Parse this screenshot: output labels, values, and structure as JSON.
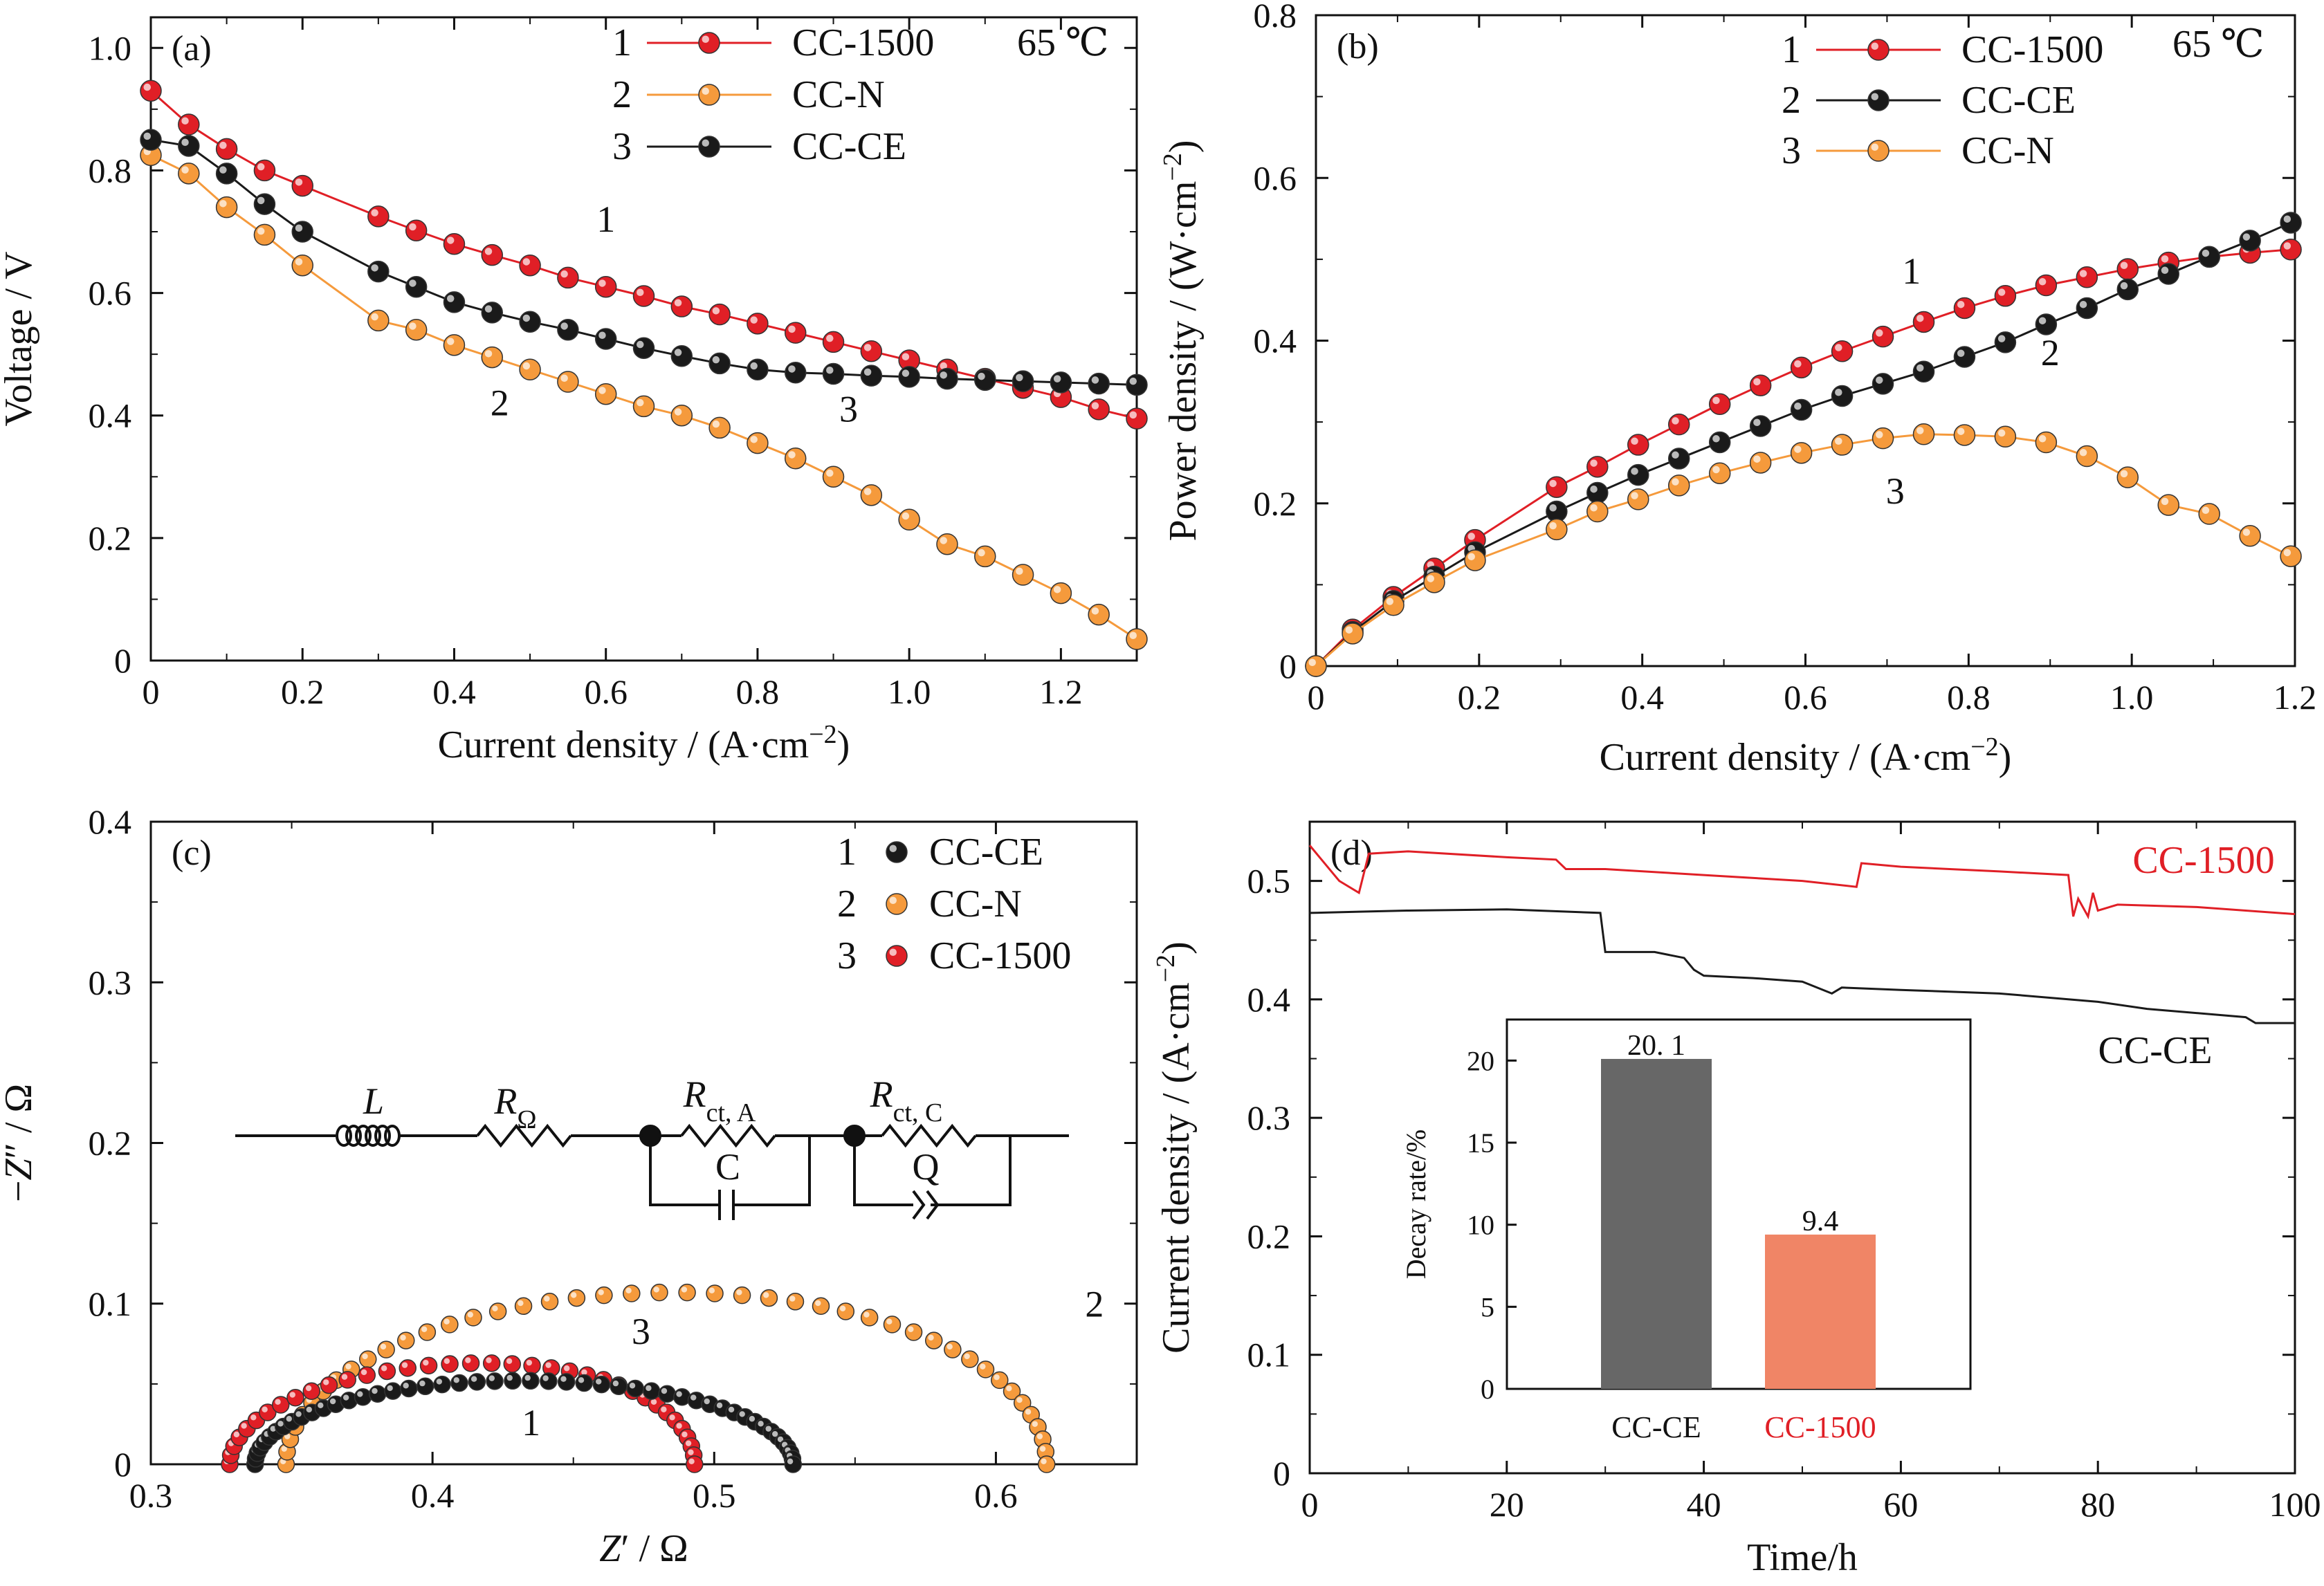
{
  "colors": {
    "red": "#e01f26",
    "orange": "#f59a3c",
    "black": "#1a1a1a",
    "bar_gray": "#676767",
    "bar_salmon": "#f08566",
    "inset_red_label": "#e01f26"
  },
  "chart_data": [
    {
      "panel": "(a)",
      "type": "line",
      "xlabel": "Current density / (A·cm⁻²)",
      "ylabel": "Voltage / V",
      "xlim": [
        0,
        1.3
      ],
      "ylim": [
        0,
        1.05
      ],
      "xticks": [
        0,
        0.2,
        0.4,
        0.6,
        0.8,
        1.0,
        1.2
      ],
      "yticks": [
        0,
        0.2,
        0.4,
        0.6,
        0.8,
        1.0
      ],
      "xtick_labels": [
        "0",
        "0.2",
        "0.4",
        "0.6",
        "0.8",
        "1.0",
        "1.2"
      ],
      "ytick_labels": [
        "0",
        "0.2",
        "0.4",
        "0.6",
        "0.8",
        "1.0"
      ],
      "temperature": "65 ℃",
      "legend": [
        {
          "num": "1",
          "name": "CC-1500",
          "color": "red"
        },
        {
          "num": "2",
          "name": "CC-N",
          "color": "orange"
        },
        {
          "num": "3",
          "name": "CC-CE",
          "color": "black"
        }
      ],
      "curve_labels": [
        {
          "text": "1",
          "x": 0.6,
          "y": 0.7
        },
        {
          "text": "2",
          "x": 0.46,
          "y": 0.4
        },
        {
          "text": "3",
          "x": 0.92,
          "y": 0.39
        }
      ],
      "series": [
        {
          "name": "CC-1500",
          "color": "red",
          "x": [
            0,
            0.05,
            0.1,
            0.15,
            0.2,
            0.3,
            0.35,
            0.4,
            0.45,
            0.5,
            0.55,
            0.6,
            0.65,
            0.7,
            0.75,
            0.8,
            0.85,
            0.9,
            0.95,
            1.0,
            1.05,
            1.1,
            1.15,
            1.2,
            1.25,
            1.3
          ],
          "y": [
            0.93,
            0.875,
            0.835,
            0.8,
            0.775,
            0.725,
            0.702,
            0.68,
            0.662,
            0.645,
            0.625,
            0.61,
            0.595,
            0.578,
            0.565,
            0.55,
            0.535,
            0.52,
            0.505,
            0.49,
            0.475,
            0.46,
            0.445,
            0.43,
            0.41,
            0.395
          ]
        },
        {
          "name": "CC-N",
          "color": "orange",
          "x": [
            0,
            0.05,
            0.1,
            0.15,
            0.2,
            0.3,
            0.35,
            0.4,
            0.45,
            0.5,
            0.55,
            0.6,
            0.65,
            0.7,
            0.75,
            0.8,
            0.85,
            0.9,
            0.95,
            1.0,
            1.05,
            1.1,
            1.15,
            1.2,
            1.25,
            1.3
          ],
          "y": [
            0.825,
            0.795,
            0.74,
            0.695,
            0.645,
            0.555,
            0.54,
            0.515,
            0.495,
            0.475,
            0.455,
            0.435,
            0.415,
            0.4,
            0.38,
            0.355,
            0.33,
            0.3,
            0.27,
            0.23,
            0.19,
            0.17,
            0.14,
            0.11,
            0.075,
            0.035
          ]
        },
        {
          "name": "CC-CE",
          "color": "black",
          "x": [
            0,
            0.05,
            0.1,
            0.15,
            0.2,
            0.3,
            0.35,
            0.4,
            0.45,
            0.5,
            0.55,
            0.6,
            0.65,
            0.7,
            0.75,
            0.8,
            0.85,
            0.9,
            0.95,
            1.0,
            1.05,
            1.1,
            1.15,
            1.2,
            1.25,
            1.3
          ],
          "y": [
            0.85,
            0.84,
            0.795,
            0.745,
            0.7,
            0.635,
            0.61,
            0.585,
            0.568,
            0.553,
            0.54,
            0.525,
            0.51,
            0.497,
            0.485,
            0.475,
            0.47,
            0.468,
            0.465,
            0.463,
            0.46,
            0.458,
            0.456,
            0.454,
            0.452,
            0.45
          ]
        }
      ]
    },
    {
      "panel": "(b)",
      "type": "line",
      "xlabel": "Current density / (A·cm⁻²)",
      "ylabel": "Power density / (W·cm⁻²)",
      "xlim": [
        0,
        1.2
      ],
      "ylim": [
        0,
        0.8
      ],
      "xticks": [
        0,
        0.2,
        0.4,
        0.6,
        0.8,
        1.0,
        1.2
      ],
      "yticks": [
        0,
        0.2,
        0.4,
        0.6,
        0.8
      ],
      "xtick_labels": [
        "0",
        "0.2",
        "0.4",
        "0.6",
        "0.8",
        "1.0",
        "1.2"
      ],
      "ytick_labels": [
        "0",
        "0.2",
        "0.4",
        "0.6",
        "0.8"
      ],
      "temperature": "65 ℃",
      "legend": [
        {
          "num": "1",
          "name": "CC-1500",
          "color": "red"
        },
        {
          "num": "2",
          "name": "CC-CE",
          "color": "black"
        },
        {
          "num": "3",
          "name": "CC-N",
          "color": "orange"
        }
      ],
      "curve_labels": [
        {
          "text": "1",
          "x": 0.73,
          "y": 0.47
        },
        {
          "text": "2",
          "x": 0.9,
          "y": 0.37
        },
        {
          "text": "3",
          "x": 0.71,
          "y": 0.2
        }
      ],
      "series": [
        {
          "name": "CC-1500",
          "color": "red",
          "x": [
            0,
            0.045,
            0.095,
            0.145,
            0.195,
            0.295,
            0.345,
            0.395,
            0.445,
            0.495,
            0.545,
            0.595,
            0.645,
            0.695,
            0.745,
            0.795,
            0.845,
            0.895,
            0.945,
            0.995,
            1.045,
            1.095,
            1.145,
            1.195
          ],
          "y": [
            0,
            0.045,
            0.085,
            0.12,
            0.155,
            0.22,
            0.245,
            0.272,
            0.297,
            0.322,
            0.345,
            0.367,
            0.387,
            0.405,
            0.423,
            0.44,
            0.455,
            0.468,
            0.478,
            0.488,
            0.496,
            0.503,
            0.508,
            0.512
          ]
        },
        {
          "name": "CC-CE",
          "color": "black",
          "x": [
            0,
            0.045,
            0.095,
            0.145,
            0.195,
            0.295,
            0.345,
            0.395,
            0.445,
            0.495,
            0.545,
            0.595,
            0.645,
            0.695,
            0.745,
            0.795,
            0.845,
            0.895,
            0.945,
            0.995,
            1.045,
            1.095,
            1.145,
            1.195
          ],
          "y": [
            0,
            0.042,
            0.08,
            0.11,
            0.14,
            0.19,
            0.213,
            0.235,
            0.255,
            0.275,
            0.295,
            0.315,
            0.332,
            0.347,
            0.362,
            0.38,
            0.398,
            0.42,
            0.44,
            0.463,
            0.482,
            0.503,
            0.523,
            0.545
          ]
        },
        {
          "name": "CC-N",
          "color": "orange",
          "x": [
            0,
            0.045,
            0.095,
            0.145,
            0.195,
            0.295,
            0.345,
            0.395,
            0.445,
            0.495,
            0.545,
            0.595,
            0.645,
            0.695,
            0.745,
            0.795,
            0.845,
            0.895,
            0.945,
            0.995,
            1.045,
            1.095,
            1.145,
            1.195
          ],
          "y": [
            0,
            0.04,
            0.075,
            0.103,
            0.13,
            0.168,
            0.19,
            0.205,
            0.222,
            0.237,
            0.25,
            0.262,
            0.272,
            0.28,
            0.285,
            0.284,
            0.282,
            0.275,
            0.258,
            0.232,
            0.198,
            0.187,
            0.16,
            0.135
          ]
        }
      ]
    },
    {
      "panel": "(c)",
      "type": "scatter",
      "xlabel": "Z′ / Ω",
      "ylabel": "−Z″ / Ω",
      "xlim": [
        0.3,
        0.65
      ],
      "ylim": [
        0,
        0.4
      ],
      "xticks": [
        0.3,
        0.4,
        0.5,
        0.6
      ],
      "yticks": [
        0,
        0.1,
        0.2,
        0.3,
        0.4
      ],
      "xtick_labels": [
        "0.3",
        "0.4",
        "0.5",
        "0.6"
      ],
      "ytick_labels": [
        "0",
        "0.1",
        "0.2",
        "0.3",
        "0.4"
      ],
      "legend": [
        {
          "num": "1",
          "name": "CC-CE",
          "color": "black"
        },
        {
          "num": "2",
          "name": "CC-N",
          "color": "orange"
        },
        {
          "num": "3",
          "name": "CC-1500",
          "color": "red"
        }
      ],
      "curve_labels": [
        {
          "text": "1",
          "x": 0.435,
          "y": 0.018
        },
        {
          "text": "2",
          "x": 0.635,
          "y": 0.092
        },
        {
          "text": "3",
          "x": 0.474,
          "y": 0.075
        }
      ],
      "circuit_labels": {
        "L": "L",
        "R_ohm": "R",
        "R_ohm_sub": "Ω",
        "Rct_A": "R",
        "Rct_A_sub": "ct, A",
        "C": "C",
        "Rct_C": "R",
        "Rct_C_sub": "ct, C",
        "Q": "Q"
      },
      "arcs": [
        {
          "name": "CC-N",
          "color": "orange",
          "x_start": 0.348,
          "x_end": 0.618,
          "peak_x": 0.49,
          "peak_y": 0.107,
          "points": 44
        },
        {
          "name": "CC-1500",
          "color": "red",
          "x_start": 0.328,
          "x_end": 0.493,
          "peak_x": 0.43,
          "peak_y": 0.063,
          "points": 36
        },
        {
          "name": "CC-CE",
          "color": "black",
          "x_start": 0.337,
          "x_end": 0.528,
          "peak_x": 0.43,
          "peak_y": 0.052,
          "points": 48
        }
      ]
    },
    {
      "panel": "(d)",
      "type": "line",
      "xlabel": "Time/h",
      "ylabel": "Current density / (A·cm⁻²)",
      "xlim": [
        0,
        100
      ],
      "ylim": [
        0,
        0.55
      ],
      "xticks": [
        0,
        20,
        40,
        60,
        80,
        100
      ],
      "yticks": [
        0,
        0.1,
        0.2,
        0.3,
        0.4,
        0.5
      ],
      "xtick_labels": [
        "0",
        "20",
        "40",
        "60",
        "80",
        "100"
      ],
      "ytick_labels": [
        "0",
        "0.1",
        "0.2",
        "0.3",
        "0.4",
        "0.5"
      ],
      "series": [
        {
          "name": "CC-1500",
          "color": "red",
          "x": [
            0,
            3,
            5,
            6,
            10,
            20,
            25,
            26,
            30,
            40,
            50,
            55.5,
            56,
            60,
            70,
            77,
            77.5,
            78,
            79,
            79.5,
            80,
            82,
            90,
            100
          ],
          "y": [
            0.53,
            0.5,
            0.49,
            0.523,
            0.525,
            0.52,
            0.518,
            0.51,
            0.51,
            0.505,
            0.5,
            0.495,
            0.515,
            0.512,
            0.508,
            0.505,
            0.47,
            0.485,
            0.47,
            0.49,
            0.475,
            0.48,
            0.478,
            0.472
          ]
        },
        {
          "name": "CC-CE",
          "color": "black",
          "x": [
            0,
            5,
            10,
            20,
            29.5,
            30,
            35,
            38,
            39,
            40,
            45,
            50,
            53,
            54,
            60,
            70,
            80,
            85,
            95,
            96,
            100
          ],
          "y": [
            0.473,
            0.474,
            0.475,
            0.476,
            0.473,
            0.44,
            0.44,
            0.435,
            0.425,
            0.42,
            0.418,
            0.415,
            0.405,
            0.41,
            0.408,
            0.405,
            0.398,
            0.392,
            0.385,
            0.38,
            0.38
          ]
        }
      ],
      "series_labels": [
        {
          "text": "CC-1500",
          "color": "red"
        },
        {
          "text": "CC-CE",
          "color": "black"
        }
      ],
      "inset": {
        "type": "bar",
        "ylabel": "Decay rate/%",
        "ylim": [
          0,
          22.5
        ],
        "yticks": [
          0,
          5,
          10,
          15,
          20
        ],
        "ytick_labels": [
          "0",
          "5",
          "10",
          "15",
          "20"
        ],
        "categories": [
          "CC-CE",
          "CC-1500"
        ],
        "values": [
          20.1,
          9.4
        ],
        "value_labels": [
          "20. 1",
          "9.4"
        ],
        "colors": [
          "bar_gray",
          "bar_salmon"
        ]
      }
    }
  ]
}
